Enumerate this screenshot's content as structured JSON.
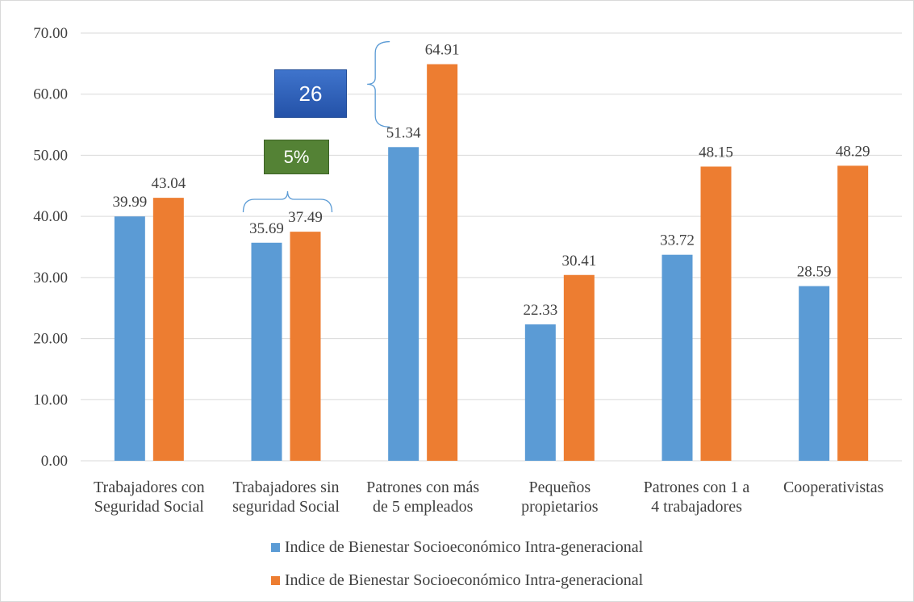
{
  "chart_data": {
    "type": "bar",
    "categories": [
      [
        "Trabajadores con",
        "Seguridad Social"
      ],
      [
        "Trabajadores sin",
        "seguridad Social"
      ],
      [
        "Patrones con más",
        "de 5 empleados"
      ],
      [
        "Pequeños",
        "propietarios"
      ],
      [
        "Patrones con 1 a",
        "4 trabajadores"
      ],
      [
        "Cooperativistas"
      ]
    ],
    "series": [
      {
        "name": "Indice de Bienestar Socioeconómico Intra-generacional",
        "color": "#5b9bd5",
        "values": [
          39.99,
          35.69,
          51.34,
          22.33,
          33.72,
          28.59
        ]
      },
      {
        "name": "Indice de Bienestar Socioeconómico Intra-generacional",
        "color": "#ed7d31",
        "values": [
          43.04,
          37.49,
          64.91,
          30.41,
          48.15,
          48.29
        ]
      }
    ],
    "value_labels": [
      [
        "39.99",
        "35.69",
        "51.34",
        "22.33",
        "33.72",
        "28.59"
      ],
      [
        "43.04",
        "37.49",
        "64.91",
        "30.41",
        "48.15",
        "48.29"
      ]
    ],
    "ylim": [
      0,
      70
    ],
    "yticks": [
      0,
      10,
      20,
      30,
      40,
      50,
      60,
      70
    ],
    "ytick_labels": [
      "0.00",
      "10.00",
      "20.00",
      "30.00",
      "40.00",
      "50.00",
      "60.00",
      "70.00"
    ],
    "grid": true,
    "legend_position": "bottom",
    "annotations": [
      {
        "text": "26",
        "color": "#2e5fb8",
        "category_index": 2
      },
      {
        "text": "5%",
        "color": "#548235",
        "category_index": 1
      }
    ]
  }
}
